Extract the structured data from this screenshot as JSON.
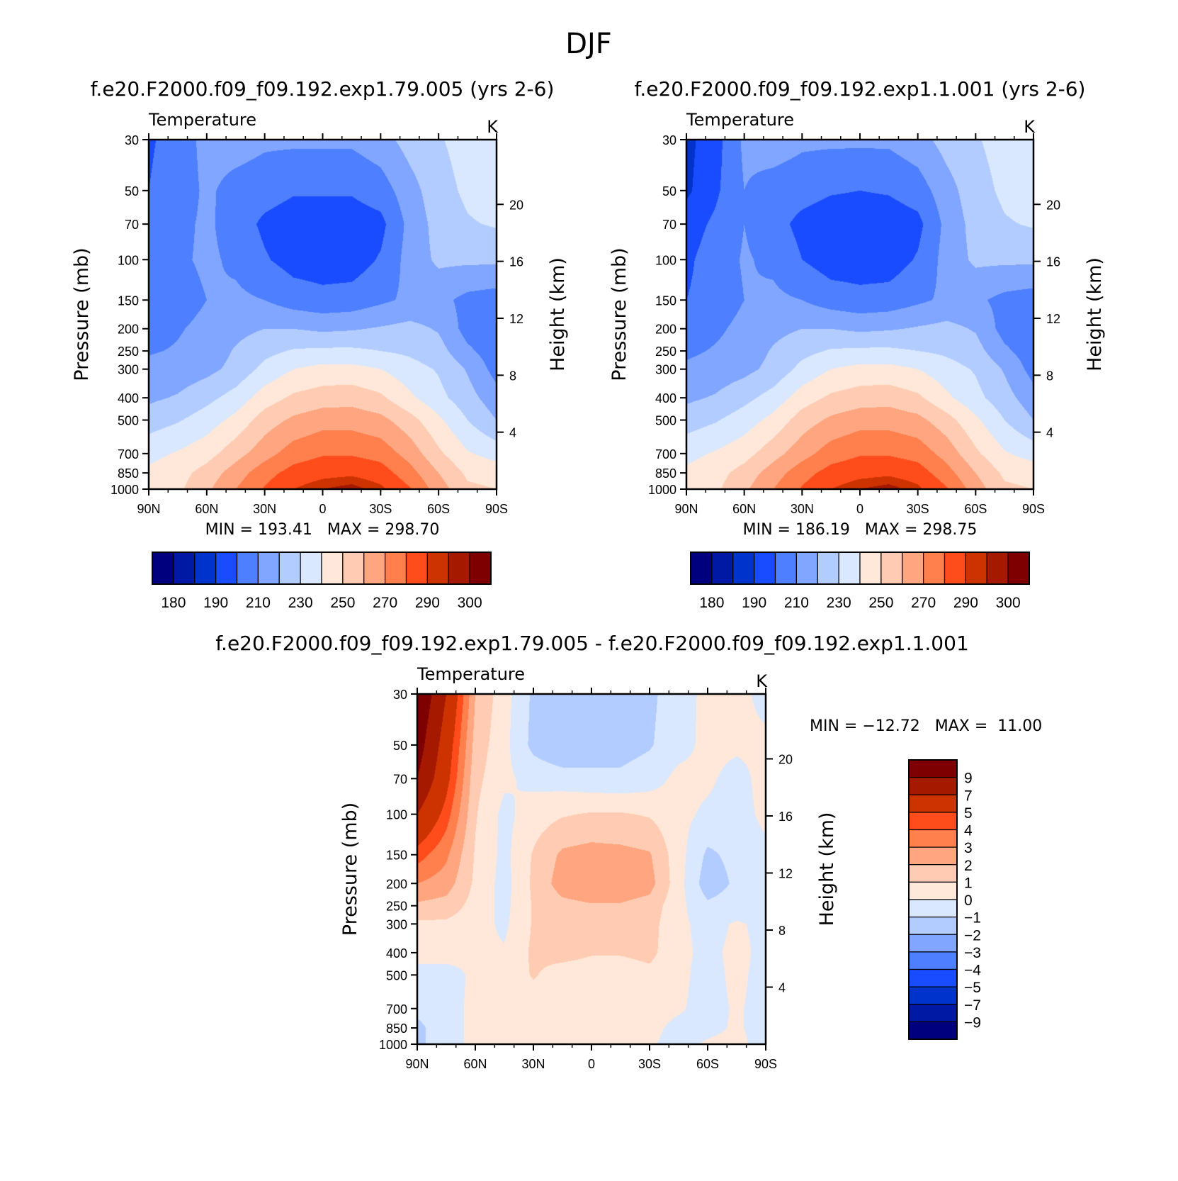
{
  "figure": {
    "title": "DJF"
  },
  "palettes": {
    "absolute": [
      "#00007f",
      "#0019a5",
      "#0033cc",
      "#1a4cff",
      "#4d7fff",
      "#80a6ff",
      "#b3ccff",
      "#d9e8ff",
      "#ffe8d9",
      "#ffccb3",
      "#ffa680",
      "#ff7f4d",
      "#ff4c1a",
      "#cc3300",
      "#a51900",
      "#7f0000"
    ],
    "difference": [
      "#00007f",
      "#0019a5",
      "#0033cc",
      "#1a4cff",
      "#4d7fff",
      "#80a6ff",
      "#b3ccff",
      "#d9e8ff",
      "#ffe8d9",
      "#ffccb3",
      "#ffa680",
      "#ff7f4d",
      "#ff4c1a",
      "#cc3300",
      "#a51900",
      "#7f0000"
    ]
  },
  "chart_data": [
    {
      "id": "panel-left",
      "type": "heatmap",
      "title": "f.e20.F2000.f09_f09.192.exp1.79.005 (yrs 2-6)",
      "subtitle_left": "Temperature",
      "subtitle_right": "K",
      "ylabel": "Pressure (mb)",
      "ylabel_right": "Height (km)",
      "x_ticks": [
        "90N",
        "60N",
        "30N",
        "0",
        "30S",
        "60S",
        "90S"
      ],
      "x_range": [
        90,
        -90
      ],
      "y_ticks": [
        30,
        50,
        70,
        100,
        150,
        200,
        250,
        300,
        400,
        500,
        700,
        850,
        1000
      ],
      "y_range": [
        30,
        1000
      ],
      "height_ticks": [
        4,
        8,
        12,
        16,
        20
      ],
      "stats": "MIN = 193.41   MAX = 298.70",
      "min": 193.41,
      "max": 298.7,
      "levels": [
        175,
        180,
        185,
        190,
        200,
        210,
        220,
        230,
        240,
        250,
        260,
        270,
        280,
        290,
        295,
        300
      ],
      "colorbar_labels": [
        "180",
        "190",
        "210",
        "230",
        "250",
        "270",
        "290",
        "300"
      ],
      "field": {
        "lat": [
          90,
          75,
          60,
          45,
          30,
          15,
          0,
          -15,
          -30,
          -45,
          -60,
          -75,
          -90
        ],
        "p": [
          30,
          50,
          70,
          100,
          150,
          200,
          250,
          300,
          400,
          500,
          700,
          850,
          1000
        ],
        "T": [
          [
            199,
            203,
            214,
            215,
            212,
            212,
            212,
            212,
            216,
            224,
            229,
            234,
            239
          ],
          [
            200,
            204,
            212,
            206,
            204,
            201,
            201,
            201,
            205,
            216,
            226,
            232,
            236
          ],
          [
            206,
            207,
            212,
            205,
            198,
            195,
            195,
            195,
            197,
            213,
            224,
            229,
            231
          ],
          [
            206,
            208,
            212,
            208,
            201,
            196,
            195,
            195,
            201,
            214,
            222,
            222,
            222
          ],
          [
            204,
            205,
            210,
            212,
            210,
            205,
            203,
            204,
            208,
            212,
            213,
            207,
            205
          ],
          [
            205,
            209,
            213,
            217,
            220,
            220,
            218,
            219,
            221,
            223,
            219,
            206,
            204
          ],
          [
            209,
            211,
            214,
            221,
            227,
            231,
            232,
            232,
            230,
            228,
            224,
            212,
            204
          ],
          [
            213,
            214,
            217,
            223,
            233,
            240,
            243,
            243,
            240,
            234,
            229,
            219,
            206
          ],
          [
            218,
            221,
            227,
            234,
            245,
            252,
            255,
            256,
            252,
            242,
            233,
            224,
            214
          ],
          [
            225,
            229,
            235,
            243,
            255,
            262,
            266,
            266,
            263,
            254,
            242,
            230,
            220
          ],
          [
            237,
            241,
            246,
            256,
            266,
            275,
            279,
            279,
            276,
            266,
            252,
            241,
            236
          ],
          [
            242,
            246,
            254,
            265,
            276,
            284,
            287,
            288,
            285,
            274,
            260,
            248,
            246
          ],
          [
            243,
            248,
            258,
            270,
            281,
            290,
            295,
            298,
            292,
            281,
            265,
            252,
            250
          ]
        ]
      }
    },
    {
      "id": "panel-right",
      "type": "heatmap",
      "title": "f.e20.F2000.f09_f09.192.exp1.1.001 (yrs 2-6)",
      "subtitle_left": "Temperature",
      "subtitle_right": "K",
      "ylabel": "Pressure (mb)",
      "ylabel_right": "Height (km)",
      "x_ticks": [
        "90N",
        "60N",
        "30N",
        "0",
        "30S",
        "60S",
        "90S"
      ],
      "x_range": [
        90,
        -90
      ],
      "y_ticks": [
        30,
        50,
        70,
        100,
        150,
        200,
        250,
        300,
        400,
        500,
        700,
        850,
        1000
      ],
      "y_range": [
        30,
        1000
      ],
      "height_ticks": [
        4,
        8,
        12,
        16,
        20
      ],
      "stats": "MIN = 186.19   MAX = 298.75",
      "min": 186.19,
      "max": 298.75,
      "levels": [
        175,
        180,
        185,
        190,
        200,
        210,
        220,
        230,
        240,
        250,
        260,
        270,
        280,
        290,
        295,
        300
      ],
      "colorbar_labels": [
        "180",
        "190",
        "210",
        "230",
        "250",
        "270",
        "290",
        "300"
      ],
      "field": {
        "lat": [
          90,
          75,
          60,
          45,
          30,
          15,
          0,
          -15,
          -30,
          -45,
          -60,
          -75,
          -90
        ],
        "p": [
          30,
          50,
          70,
          100,
          150,
          200,
          250,
          300,
          400,
          500,
          700,
          850,
          1000
        ],
        "T": [
          [
            187,
            196,
            212,
            215,
            212,
            212,
            212,
            212,
            216,
            224,
            229,
            234,
            239
          ],
          [
            188,
            198,
            210,
            206,
            204,
            201,
            200,
            201,
            205,
            216,
            226,
            232,
            236
          ],
          [
            195,
            202,
            210,
            204,
            197,
            194,
            194,
            194,
            197,
            213,
            224,
            229,
            231
          ],
          [
            198,
            205,
            211,
            208,
            200,
            195,
            195,
            195,
            201,
            214,
            222,
            222,
            222
          ],
          [
            200,
            204,
            210,
            212,
            210,
            205,
            203,
            204,
            208,
            212,
            212,
            207,
            205
          ],
          [
            203,
            208,
            213,
            217,
            220,
            220,
            218,
            219,
            221,
            223,
            219,
            206,
            204
          ],
          [
            208,
            211,
            214,
            221,
            227,
            231,
            232,
            232,
            230,
            228,
            224,
            212,
            204
          ],
          [
            212,
            214,
            217,
            223,
            233,
            240,
            243,
            243,
            240,
            234,
            229,
            219,
            206
          ],
          [
            218,
            221,
            227,
            234,
            245,
            252,
            255,
            256,
            252,
            242,
            233,
            224,
            214
          ],
          [
            225,
            229,
            235,
            243,
            255,
            262,
            266,
            266,
            263,
            254,
            242,
            230,
            220
          ],
          [
            237,
            241,
            246,
            256,
            266,
            275,
            279,
            279,
            276,
            266,
            252,
            241,
            236
          ],
          [
            242,
            246,
            254,
            265,
            276,
            284,
            287,
            288,
            285,
            274,
            260,
            248,
            246
          ],
          [
            243,
            248,
            258,
            270,
            281,
            290,
            295,
            298,
            292,
            281,
            265,
            252,
            250
          ]
        ]
      }
    },
    {
      "id": "panel-diff",
      "type": "heatmap",
      "title": "f.e20.F2000.f09_f09.192.exp1.79.005 - f.e20.F2000.f09_f09.192.exp1.1.001",
      "subtitle_left": "Temperature",
      "subtitle_right": "K",
      "ylabel": "Pressure (mb)",
      "ylabel_right": "Height (km)",
      "x_ticks": [
        "90N",
        "60N",
        "30N",
        "0",
        "30S",
        "60S",
        "90S"
      ],
      "x_range": [
        90,
        -90
      ],
      "y_ticks": [
        30,
        50,
        70,
        100,
        150,
        200,
        250,
        300,
        400,
        500,
        700,
        850,
        1000
      ],
      "y_range": [
        30,
        1000
      ],
      "height_ticks": [
        4,
        8,
        12,
        16,
        20
      ],
      "stats": "MIN = -12.72   MAX =  11.00",
      "min": -12.72,
      "max": 11.0,
      "levels": [
        -11,
        -9,
        -7,
        -5,
        -4,
        -3,
        -2,
        -1,
        0,
        1,
        2,
        3,
        4,
        5,
        7,
        9
      ],
      "colorbar_labels": [
        "9",
        "7",
        "5",
        "4",
        "3",
        "2",
        "1",
        "0",
        "-1",
        "-2",
        "-3",
        "-4",
        "-5",
        "-7",
        "-9"
      ],
      "field": {
        "lat": [
          90,
          75,
          60,
          45,
          30,
          15,
          0,
          -15,
          -30,
          -45,
          -60,
          -75,
          -90
        ],
        "p": [
          30,
          50,
          70,
          100,
          150,
          200,
          250,
          300,
          400,
          500,
          700,
          850,
          1000
        ],
        "T": [
          [
            11,
            7,
            2,
            0.4,
            -1.2,
            -1.3,
            -1.3,
            -1.2,
            -1.2,
            -0.5,
            0.3,
            0.3,
            -0.3
          ],
          [
            10,
            6,
            1.6,
            0.3,
            -1.3,
            -2,
            -1.6,
            -1.4,
            -1.1,
            -0.4,
            0.3,
            0.2,
            0.2
          ],
          [
            9,
            5.5,
            1.3,
            0.2,
            -0.3,
            -0.5,
            -0.7,
            -0.8,
            -0.5,
            0.3,
            0.2,
            -0.4,
            0.4
          ],
          [
            7,
            4.5,
            1.1,
            -0.3,
            0.5,
            0.9,
            1.1,
            1.1,
            0.9,
            0.3,
            -0.2,
            -0.5,
            0.3
          ],
          [
            4.5,
            3.2,
            0.9,
            -0.3,
            1.1,
            2.2,
            2.4,
            2.3,
            2.1,
            0.4,
            -1.2,
            -0.7,
            -0.3
          ],
          [
            3,
            2.5,
            0.8,
            -0.4,
            1.2,
            2.5,
            2.8,
            2.7,
            2.4,
            0.4,
            -1.6,
            -0.8,
            -0.4
          ],
          [
            1.8,
            1.6,
            0.6,
            -0.3,
            1.1,
            1.7,
            1.9,
            1.9,
            1.6,
            0.3,
            -0.8,
            -0.5,
            -0.2
          ],
          [
            0.8,
            0.8,
            0.4,
            -0.2,
            1.1,
            1.6,
            1.5,
            1.5,
            1.4,
            0.2,
            -0.3,
            0.1,
            -0.2
          ],
          [
            0.3,
            0.4,
            0.2,
            0.1,
            1.2,
            1.4,
            1.1,
            1.1,
            1.3,
            0.2,
            -0.2,
            0.2,
            -0.2
          ],
          [
            -0.3,
            -0.4,
            0.2,
            0.3,
            1.1,
            0.5,
            0.4,
            0.4,
            0.7,
            0.2,
            -0.3,
            0.2,
            -0.3
          ],
          [
            -0.7,
            -0.3,
            0.2,
            0.3,
            0.4,
            0.3,
            0.3,
            0.3,
            0.3,
            0.1,
            -0.3,
            0.1,
            -0.3
          ],
          [
            -1.3,
            -0.3,
            0.2,
            0.3,
            0.4,
            0.3,
            0.3,
            0.3,
            0.2,
            -0.2,
            -0.2,
            0.1,
            -0.3
          ],
          [
            -1.3,
            -0.3,
            0.2,
            0.3,
            0.3,
            0.3,
            0.2,
            0.2,
            0.1,
            -0.3,
            0.1,
            0.2,
            -0.3
          ]
        ]
      }
    }
  ]
}
